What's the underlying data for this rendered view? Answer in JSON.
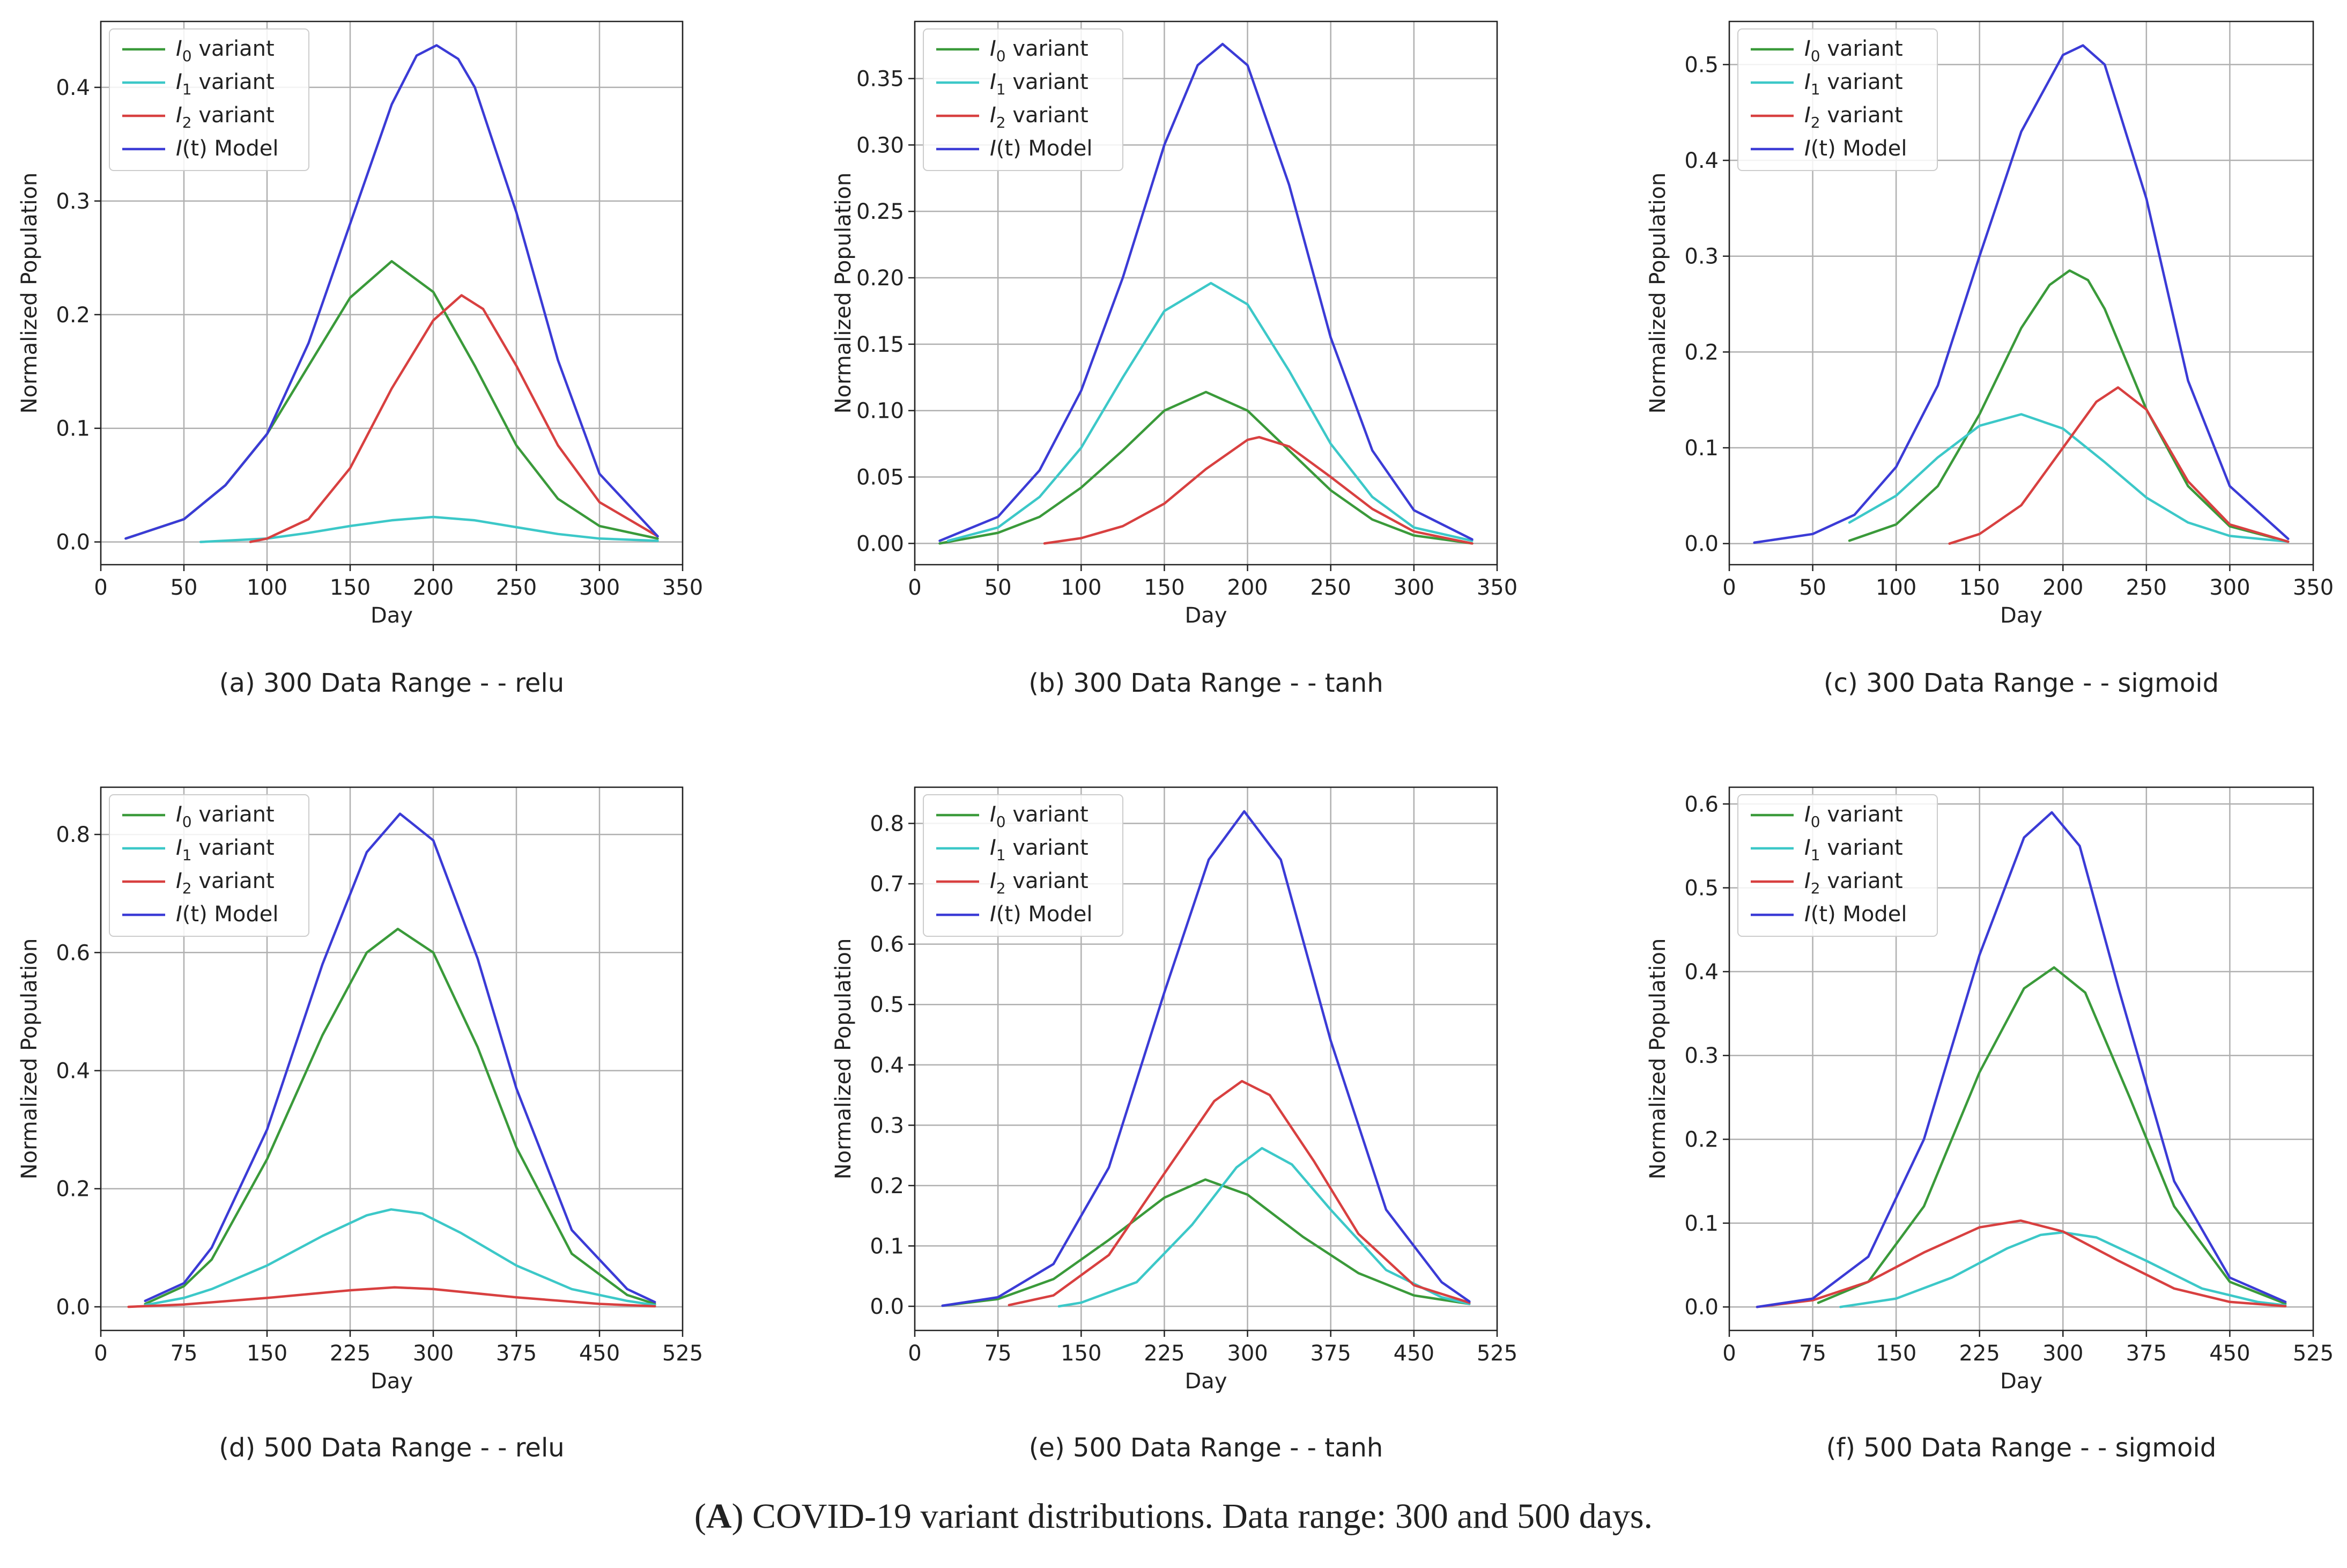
{
  "figure_caption": {
    "open": "(",
    "label": "A",
    "text": ") COVID-19 variant distributions. Data range: 300 and 500 days."
  },
  "colors": {
    "I0": "#3a9a3a",
    "I1": "#3cc8c8",
    "I2": "#d84040",
    "It": "#3b3bd6"
  },
  "legend": [
    {
      "sym": "I",
      "sub": "0",
      "rest": " variant",
      "key": "I0"
    },
    {
      "sym": "I",
      "sub": "1",
      "rest": " variant",
      "key": "I1"
    },
    {
      "sym": "I",
      "sub": "2",
      "rest": " variant",
      "key": "I2"
    },
    {
      "sym": "I",
      "sub": "",
      "rest": "(t) Model",
      "key": "It"
    }
  ],
  "chart_data": [
    {
      "type": "line",
      "caption": "(a) 300 Data Range -  - relu",
      "xlabel": "Day",
      "ylabel": "Normalized Population",
      "xlim": [
        0,
        350
      ],
      "ylim": [
        -0.02,
        0.458
      ],
      "xticks": [
        0,
        50,
        100,
        150,
        200,
        250,
        300,
        350
      ],
      "yticks": [
        0.0,
        0.1,
        0.2,
        0.3,
        0.4
      ],
      "ytick_labels": [
        "0.0",
        "0.1",
        "0.2",
        "0.3",
        "0.4"
      ],
      "legend_position": "top-left",
      "series": [
        {
          "key": "I0",
          "name": "I0 variant",
          "x": [
            15,
            50,
            75,
            100,
            125,
            150,
            175,
            200,
            225,
            250,
            275,
            300,
            335
          ],
          "y": [
            0.003,
            0.02,
            0.05,
            0.095,
            0.155,
            0.215,
            0.247,
            0.22,
            0.155,
            0.085,
            0.038,
            0.014,
            0.003
          ]
        },
        {
          "key": "I1",
          "name": "I1 variant",
          "x": [
            60,
            100,
            125,
            150,
            175,
            200,
            225,
            250,
            275,
            300,
            335
          ],
          "y": [
            0.0,
            0.003,
            0.008,
            0.014,
            0.019,
            0.022,
            0.019,
            0.013,
            0.007,
            0.003,
            0.001
          ]
        },
        {
          "key": "I2",
          "name": "I2 variant",
          "x": [
            90,
            100,
            125,
            150,
            175,
            200,
            217,
            230,
            250,
            275,
            300,
            335
          ],
          "y": [
            0.0,
            0.003,
            0.02,
            0.065,
            0.135,
            0.195,
            0.217,
            0.205,
            0.155,
            0.085,
            0.035,
            0.005
          ]
        },
        {
          "key": "It",
          "name": "I(t) Model",
          "x": [
            15,
            50,
            75,
            100,
            125,
            150,
            175,
            190,
            202,
            215,
            225,
            250,
            275,
            300,
            335
          ],
          "y": [
            0.003,
            0.02,
            0.05,
            0.095,
            0.175,
            0.28,
            0.385,
            0.428,
            0.437,
            0.425,
            0.4,
            0.29,
            0.16,
            0.06,
            0.005
          ]
        }
      ]
    },
    {
      "type": "line",
      "caption": "(b) 300 Data Range -  - tanh",
      "xlabel": "Day",
      "ylabel": "Normalized Population",
      "xlim": [
        0,
        350
      ],
      "ylim": [
        -0.016,
        0.393
      ],
      "xticks": [
        0,
        50,
        100,
        150,
        200,
        250,
        300,
        350
      ],
      "yticks": [
        0.0,
        0.05,
        0.1,
        0.15,
        0.2,
        0.25,
        0.3,
        0.35
      ],
      "ytick_labels": [
        "0.00",
        "0.05",
        "0.10",
        "0.15",
        "0.20",
        "0.25",
        "0.30",
        "0.35"
      ],
      "legend_position": "top-left",
      "series": [
        {
          "key": "I0",
          "name": "I0 variant",
          "x": [
            15,
            50,
            75,
            100,
            125,
            150,
            175,
            200,
            225,
            250,
            275,
            300,
            335
          ],
          "y": [
            0.0,
            0.008,
            0.02,
            0.042,
            0.07,
            0.1,
            0.114,
            0.1,
            0.07,
            0.04,
            0.018,
            0.006,
            0.0
          ]
        },
        {
          "key": "I1",
          "name": "I1 variant",
          "x": [
            20,
            50,
            75,
            100,
            125,
            150,
            178,
            200,
            225,
            250,
            275,
            300,
            335
          ],
          "y": [
            0.002,
            0.012,
            0.035,
            0.072,
            0.125,
            0.175,
            0.196,
            0.18,
            0.13,
            0.075,
            0.035,
            0.012,
            0.002
          ]
        },
        {
          "key": "I2",
          "name": "I2 variant",
          "x": [
            78,
            100,
            125,
            150,
            175,
            200,
            207,
            225,
            250,
            275,
            300,
            335
          ],
          "y": [
            0.0,
            0.004,
            0.013,
            0.03,
            0.056,
            0.078,
            0.08,
            0.073,
            0.05,
            0.026,
            0.009,
            0.0
          ]
        },
        {
          "key": "It",
          "name": "I(t) Model",
          "x": [
            15,
            50,
            75,
            100,
            125,
            150,
            170,
            185,
            200,
            225,
            250,
            275,
            300,
            335
          ],
          "y": [
            0.002,
            0.02,
            0.055,
            0.115,
            0.2,
            0.3,
            0.36,
            0.376,
            0.36,
            0.27,
            0.155,
            0.07,
            0.025,
            0.003
          ]
        }
      ]
    },
    {
      "type": "line",
      "caption": "(c) 300 Data Range -  - sigmoid",
      "xlabel": "Day",
      "ylabel": "Normalized Population",
      "xlim": [
        0,
        350
      ],
      "ylim": [
        -0.022,
        0.545
      ],
      "xticks": [
        0,
        50,
        100,
        150,
        200,
        250,
        300,
        350
      ],
      "yticks": [
        0.0,
        0.1,
        0.2,
        0.3,
        0.4,
        0.5
      ],
      "ytick_labels": [
        "0.0",
        "0.1",
        "0.2",
        "0.3",
        "0.4",
        "0.5"
      ],
      "legend_position": "top-left",
      "series": [
        {
          "key": "I0",
          "name": "I0 variant",
          "x": [
            72,
            100,
            125,
            150,
            175,
            192,
            204,
            215,
            225,
            250,
            275,
            300,
            335
          ],
          "y": [
            0.003,
            0.02,
            0.06,
            0.135,
            0.225,
            0.27,
            0.285,
            0.275,
            0.245,
            0.14,
            0.06,
            0.018,
            0.002
          ]
        },
        {
          "key": "I1",
          "name": "I1 variant",
          "x": [
            72,
            100,
            125,
            150,
            175,
            200,
            225,
            250,
            275,
            300,
            335
          ],
          "y": [
            0.022,
            0.05,
            0.09,
            0.123,
            0.135,
            0.12,
            0.085,
            0.048,
            0.022,
            0.008,
            0.002
          ]
        },
        {
          "key": "I2",
          "name": "I2 variant",
          "x": [
            132,
            150,
            175,
            200,
            220,
            233,
            250,
            275,
            300,
            335
          ],
          "y": [
            0.0,
            0.01,
            0.04,
            0.1,
            0.148,
            0.163,
            0.14,
            0.065,
            0.02,
            0.002
          ]
        },
        {
          "key": "It",
          "name": "I(t) Model",
          "x": [
            15,
            50,
            75,
            100,
            125,
            150,
            175,
            200,
            212,
            225,
            250,
            275,
            300,
            335
          ],
          "y": [
            0.001,
            0.01,
            0.03,
            0.08,
            0.165,
            0.3,
            0.43,
            0.51,
            0.52,
            0.5,
            0.36,
            0.17,
            0.06,
            0.005
          ]
        }
      ]
    },
    {
      "type": "line",
      "caption": "(d) 500 Data Range -  - relu",
      "xlabel": "Day",
      "ylabel": "Normalized Population",
      "xlim": [
        0,
        525
      ],
      "ylim": [
        -0.04,
        0.88
      ],
      "xticks": [
        0,
        75,
        150,
        225,
        300,
        375,
        450,
        525
      ],
      "yticks": [
        0.0,
        0.2,
        0.4,
        0.6,
        0.8
      ],
      "ytick_labels": [
        "0.0",
        "0.2",
        "0.4",
        "0.6",
        "0.8"
      ],
      "legend_position": "top-left",
      "series": [
        {
          "key": "I0",
          "name": "I0 variant",
          "x": [
            40,
            75,
            100,
            150,
            200,
            240,
            268,
            300,
            340,
            375,
            425,
            475,
            500
          ],
          "y": [
            0.005,
            0.035,
            0.08,
            0.25,
            0.46,
            0.6,
            0.64,
            0.6,
            0.44,
            0.27,
            0.09,
            0.02,
            0.005
          ]
        },
        {
          "key": "I1",
          "name": "I1 variant",
          "x": [
            40,
            75,
            100,
            150,
            200,
            240,
            262,
            290,
            325,
            375,
            425,
            475,
            500
          ],
          "y": [
            0.003,
            0.015,
            0.03,
            0.07,
            0.12,
            0.155,
            0.165,
            0.158,
            0.125,
            0.07,
            0.03,
            0.01,
            0.003
          ]
        },
        {
          "key": "I2",
          "name": "I2 variant",
          "x": [
            25,
            75,
            150,
            225,
            265,
            300,
            375,
            450,
            500
          ],
          "y": [
            0.0,
            0.004,
            0.015,
            0.028,
            0.033,
            0.03,
            0.016,
            0.005,
            0.001
          ]
        },
        {
          "key": "It",
          "name": "I(t) Model",
          "x": [
            40,
            75,
            100,
            150,
            200,
            240,
            270,
            300,
            340,
            375,
            425,
            475,
            500
          ],
          "y": [
            0.01,
            0.04,
            0.1,
            0.3,
            0.58,
            0.77,
            0.835,
            0.79,
            0.59,
            0.37,
            0.13,
            0.03,
            0.008
          ]
        }
      ]
    },
    {
      "type": "line",
      "caption": "(e) 500 Data Range -  - tanh",
      "xlabel": "Day",
      "ylabel": "Normalized Population",
      "xlim": [
        0,
        525
      ],
      "ylim": [
        -0.04,
        0.86
      ],
      "xticks": [
        0,
        75,
        150,
        225,
        300,
        375,
        450,
        525
      ],
      "yticks": [
        0.0,
        0.1,
        0.2,
        0.3,
        0.4,
        0.5,
        0.6,
        0.7,
        0.8
      ],
      "ytick_labels": [
        "0.0",
        "0.1",
        "0.2",
        "0.3",
        "0.4",
        "0.5",
        "0.6",
        "0.7",
        "0.8"
      ],
      "legend_position": "top-left",
      "series": [
        {
          "key": "I0",
          "name": "I0 variant",
          "x": [
            25,
            75,
            125,
            175,
            225,
            262,
            300,
            350,
            400,
            450,
            500
          ],
          "y": [
            0.001,
            0.012,
            0.045,
            0.11,
            0.18,
            0.21,
            0.185,
            0.115,
            0.055,
            0.018,
            0.004
          ]
        },
        {
          "key": "I1",
          "name": "I1 variant",
          "x": [
            130,
            150,
            200,
            250,
            290,
            313,
            340,
            375,
            425,
            475,
            500
          ],
          "y": [
            0.0,
            0.006,
            0.04,
            0.135,
            0.23,
            0.262,
            0.235,
            0.16,
            0.06,
            0.015,
            0.004
          ]
        },
        {
          "key": "I2",
          "name": "I2 variant",
          "x": [
            85,
            125,
            175,
            225,
            270,
            295,
            320,
            360,
            400,
            450,
            500
          ],
          "y": [
            0.002,
            0.018,
            0.085,
            0.22,
            0.34,
            0.373,
            0.35,
            0.24,
            0.12,
            0.035,
            0.006
          ]
        },
        {
          "key": "It",
          "name": "I(t) Model",
          "x": [
            25,
            75,
            125,
            175,
            225,
            265,
            297,
            330,
            375,
            425,
            475,
            500
          ],
          "y": [
            0.001,
            0.015,
            0.07,
            0.23,
            0.52,
            0.74,
            0.82,
            0.74,
            0.44,
            0.16,
            0.04,
            0.008
          ]
        }
      ]
    },
    {
      "type": "line",
      "caption": "(f) 500 Data Range -  - sigmoid",
      "xlabel": "Day",
      "ylabel": "Normalized Population",
      "xlim": [
        0,
        525
      ],
      "ylim": [
        -0.028,
        0.62
      ],
      "xticks": [
        0,
        75,
        150,
        225,
        300,
        375,
        450,
        525
      ],
      "yticks": [
        0.0,
        0.1,
        0.2,
        0.3,
        0.4,
        0.5,
        0.6
      ],
      "ytick_labels": [
        "0.0",
        "0.1",
        "0.2",
        "0.3",
        "0.4",
        "0.5",
        "0.6"
      ],
      "legend_position": "top-left",
      "series": [
        {
          "key": "I0",
          "name": "I0 variant",
          "x": [
            80,
            125,
            175,
            225,
            265,
            292,
            320,
            360,
            400,
            450,
            500
          ],
          "y": [
            0.005,
            0.03,
            0.12,
            0.28,
            0.38,
            0.405,
            0.375,
            0.25,
            0.12,
            0.03,
            0.004
          ]
        },
        {
          "key": "I1",
          "name": "I1 variant",
          "x": [
            100,
            150,
            200,
            250,
            280,
            300,
            330,
            375,
            425,
            475,
            500
          ],
          "y": [
            0.0,
            0.01,
            0.035,
            0.07,
            0.086,
            0.089,
            0.083,
            0.055,
            0.022,
            0.006,
            0.002
          ]
        },
        {
          "key": "I2",
          "name": "I2 variant",
          "x": [
            25,
            75,
            125,
            175,
            225,
            262,
            300,
            350,
            400,
            450,
            500
          ],
          "y": [
            0.0,
            0.008,
            0.03,
            0.065,
            0.095,
            0.103,
            0.09,
            0.055,
            0.022,
            0.006,
            0.001
          ]
        },
        {
          "key": "It",
          "name": "I(t) Model",
          "x": [
            25,
            75,
            125,
            175,
            225,
            265,
            290,
            315,
            350,
            400,
            450,
            500
          ],
          "y": [
            0.0,
            0.01,
            0.06,
            0.2,
            0.42,
            0.56,
            0.59,
            0.55,
            0.38,
            0.15,
            0.035,
            0.006
          ]
        }
      ]
    }
  ]
}
